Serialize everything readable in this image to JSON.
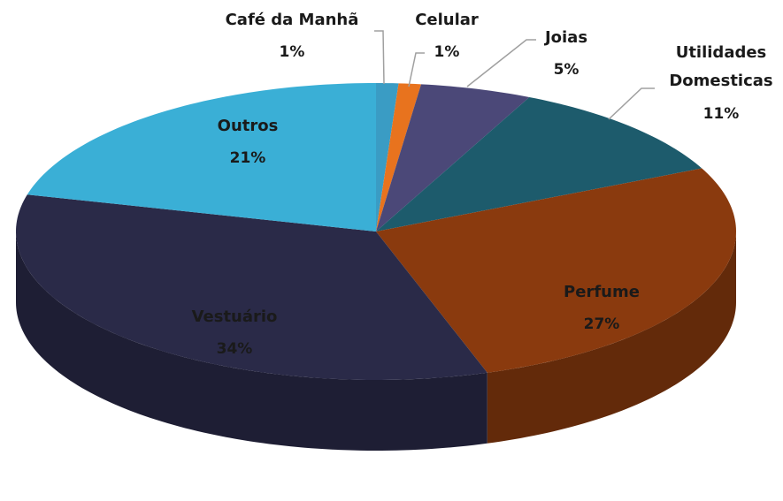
{
  "chart_data": {
    "type": "pie",
    "categories": [
      "Café da Manhã",
      "Celular",
      "Joias",
      "Utilidades Domesticas",
      "Perfume",
      "Vestuário",
      "Outros"
    ],
    "values": [
      1,
      1,
      5,
      11,
      27,
      34,
      21
    ],
    "value_labels": [
      "1%",
      "1%",
      "5%",
      "11%",
      "27%",
      "34%",
      "21%"
    ],
    "colors": [
      "#3a9cc4",
      "#e8731e",
      "#4b4878",
      "#1d5b6c",
      "#8a3a0e",
      "#2a2a48",
      "#3aafd6"
    ]
  }
}
